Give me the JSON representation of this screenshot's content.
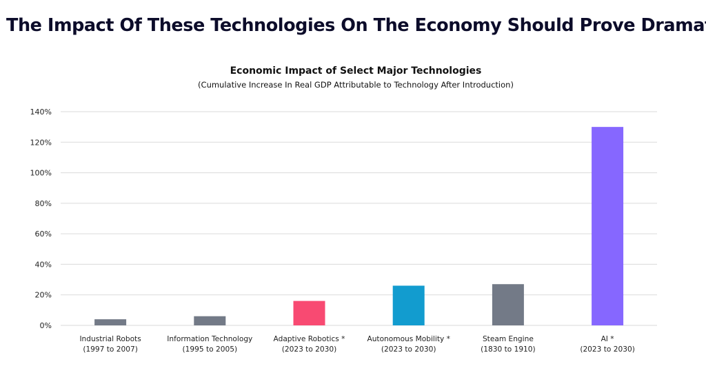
{
  "page": {
    "headline": "The Impact Of These Technologies On The Economy Should Prove Dramatic"
  },
  "chart_data": {
    "type": "bar",
    "title": "Economic Impact of Select Major Technologies",
    "subtitle": "(Cumulative Increase In Real GDP Attributable to Technology After Introduction)",
    "xlabel": "",
    "ylabel": "",
    "ylim": [
      0,
      140
    ],
    "yticks": [
      "0%",
      "20%",
      "40%",
      "60%",
      "80%",
      "100%",
      "120%",
      "140%"
    ],
    "grid": true,
    "categories": [
      {
        "line1": "Industrial Robots",
        "line2": "(1997 to 2007)"
      },
      {
        "line1": "Information Technology",
        "line2": "(1995 to 2005)"
      },
      {
        "line1": "Adaptive Robotics *",
        "line2": "(2023 to 2030)"
      },
      {
        "line1": "Autonomous Mobility  *",
        "line2": "(2023 to 2030)"
      },
      {
        "line1": "Steam Engine",
        "line2": "(1830 to 1910)"
      },
      {
        "line1": "AI *",
        "line2": "(2023 to 2030)"
      }
    ],
    "values": [
      4,
      6,
      16,
      26,
      27,
      130
    ],
    "colors": [
      "#737a87",
      "#737a87",
      "#f84a72",
      "#129ccf",
      "#737a87",
      "#8667ff"
    ]
  }
}
